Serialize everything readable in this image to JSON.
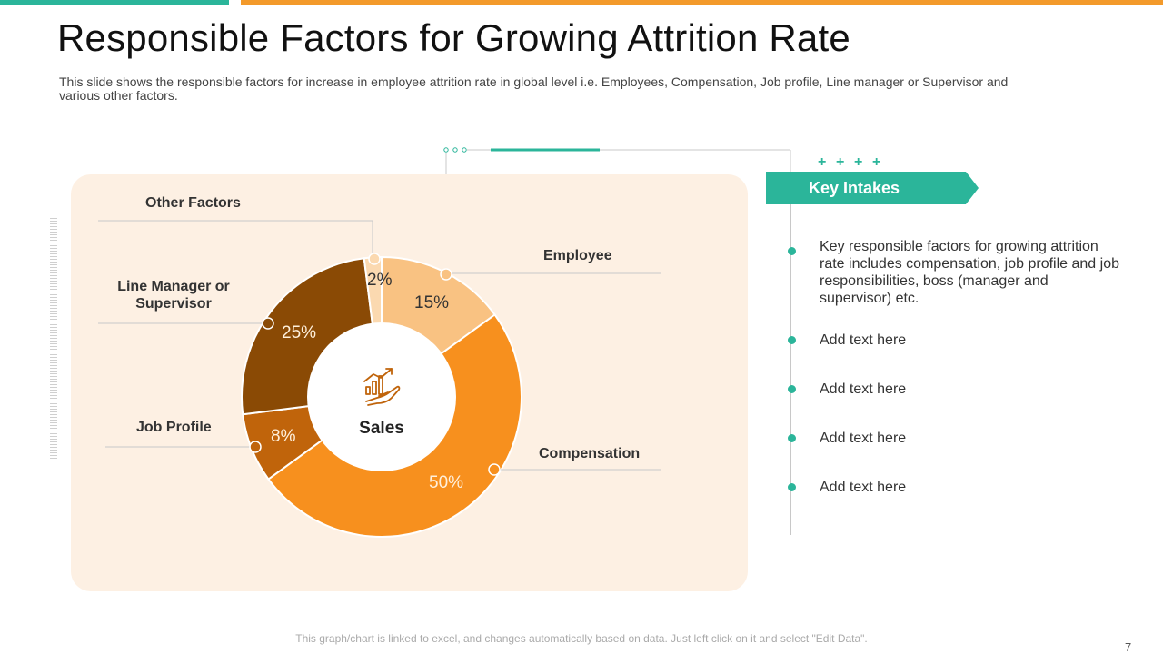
{
  "slide": {
    "title": "Responsible Factors for Growing Attrition Rate",
    "subtitle": "This slide shows the responsible factors for increase in employee attrition rate in global level i.e. Employees, Compensation, Job profile, Line manager or Supervisor and various other factors.",
    "footer": "This graph/chart is linked to excel, and changes automatically based on data. Just left click on it and select \"Edit Data\".",
    "page_number": "7"
  },
  "chart_data": {
    "type": "pie",
    "variant": "donut",
    "center_label": "Sales",
    "slices": [
      {
        "name": "Employee",
        "value": 15,
        "label": "15%",
        "color": "#f9c282"
      },
      {
        "name": "Compensation",
        "value": 50,
        "label": "50%",
        "color": "#f7901e"
      },
      {
        "name": "Job Profile",
        "value": 8,
        "label": "8%",
        "color": "#c0640b"
      },
      {
        "name": "Line Manager or Supervisor",
        "value": 25,
        "label": "25%",
        "color": "#8a4a05"
      },
      {
        "name": "Other Factors",
        "value": 2,
        "label": "2%",
        "color": "#fbd9b0"
      }
    ]
  },
  "labels": {
    "employee": "Employee",
    "compensation": "Compensation",
    "job_profile": "Job Profile",
    "line_manager_1": "Line Manager or",
    "line_manager_2": "Supervisor",
    "other_factors": "Other Factors"
  },
  "key_intakes": {
    "heading": "Key Intakes",
    "plus_signs": [
      "+",
      "+",
      "+",
      "+"
    ],
    "items": [
      "Key responsible factors for growing attrition rate includes compensation, job profile and job responsibilities, boss (manager and supervisor) etc.",
      "Add text here",
      "Add text here",
      "Add text here",
      "Add text here"
    ]
  },
  "colors": {
    "teal": "#2bb59a",
    "orange": "#f39a2b",
    "panel": "#fdf0e3"
  }
}
